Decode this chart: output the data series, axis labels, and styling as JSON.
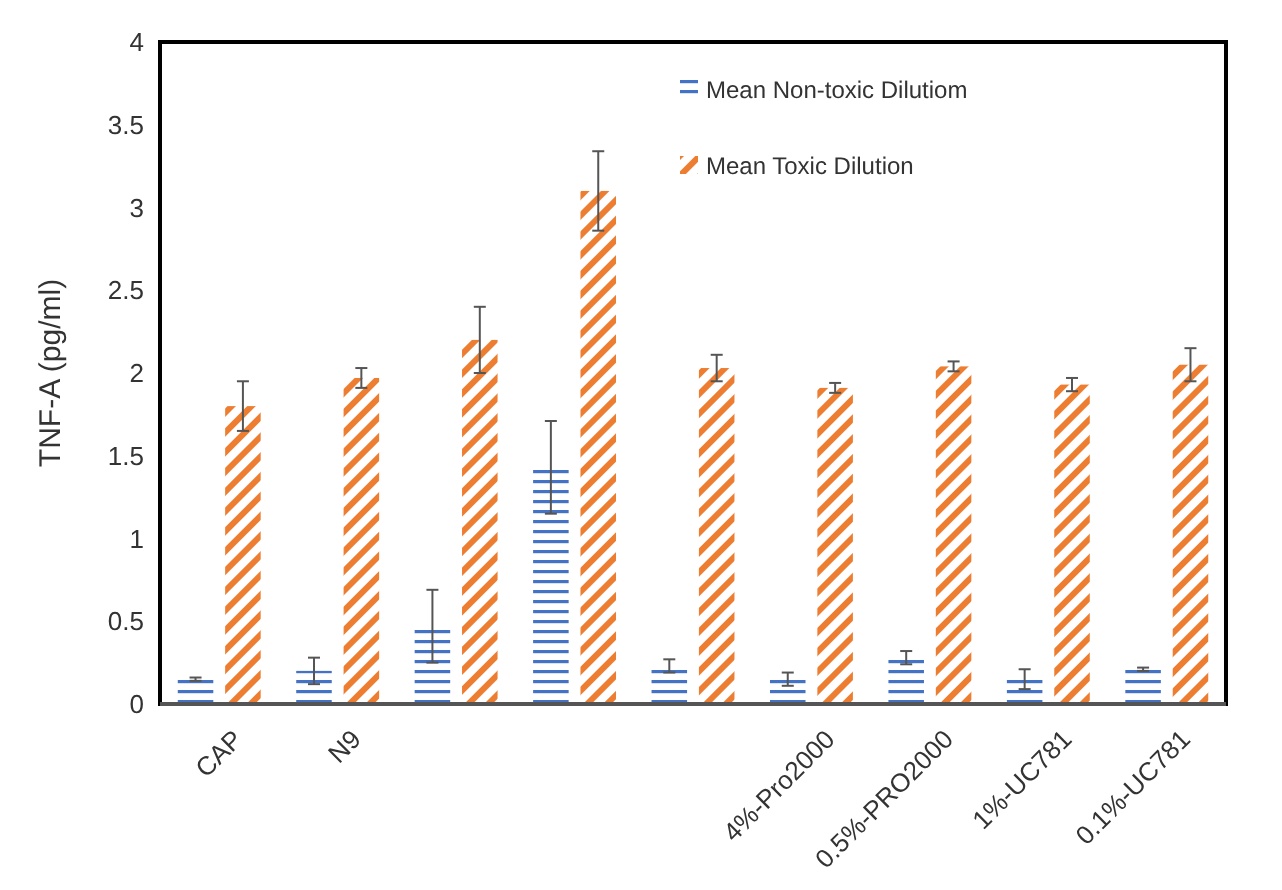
{
  "chart_data": {
    "type": "bar",
    "ylabel": "TNF-A (pg/ml)",
    "categories": [
      "CAP",
      "N9",
      null,
      null,
      null,
      "4%-Pro2000",
      "0.5%-PRO2000",
      "1%-UC781",
      "0.1%-UC781"
    ],
    "series": [
      {
        "name": "Mean Non-toxic Dilutiom",
        "color": "#4472c4",
        "values": [
          0.15,
          0.2,
          0.47,
          1.43,
          0.23,
          0.15,
          0.28,
          0.15,
          0.21
        ],
        "errors": [
          0.01,
          0.08,
          0.22,
          0.28,
          0.04,
          0.04,
          0.04,
          0.06,
          0.01
        ]
      },
      {
        "name": "Mean Toxic Dilution",
        "color": "#ed7d31",
        "values": [
          1.8,
          1.97,
          2.2,
          3.1,
          2.03,
          1.91,
          2.04,
          1.93,
          2.05
        ],
        "errors": [
          0.15,
          0.06,
          0.2,
          0.24,
          0.08,
          0.03,
          0.03,
          0.04,
          0.1
        ]
      }
    ],
    "ylim": [
      0,
      4
    ],
    "yticks": [
      0,
      0.5,
      1,
      1.5,
      2,
      2.5,
      3,
      3.5,
      4
    ],
    "grid": false,
    "legend": "top right"
  }
}
